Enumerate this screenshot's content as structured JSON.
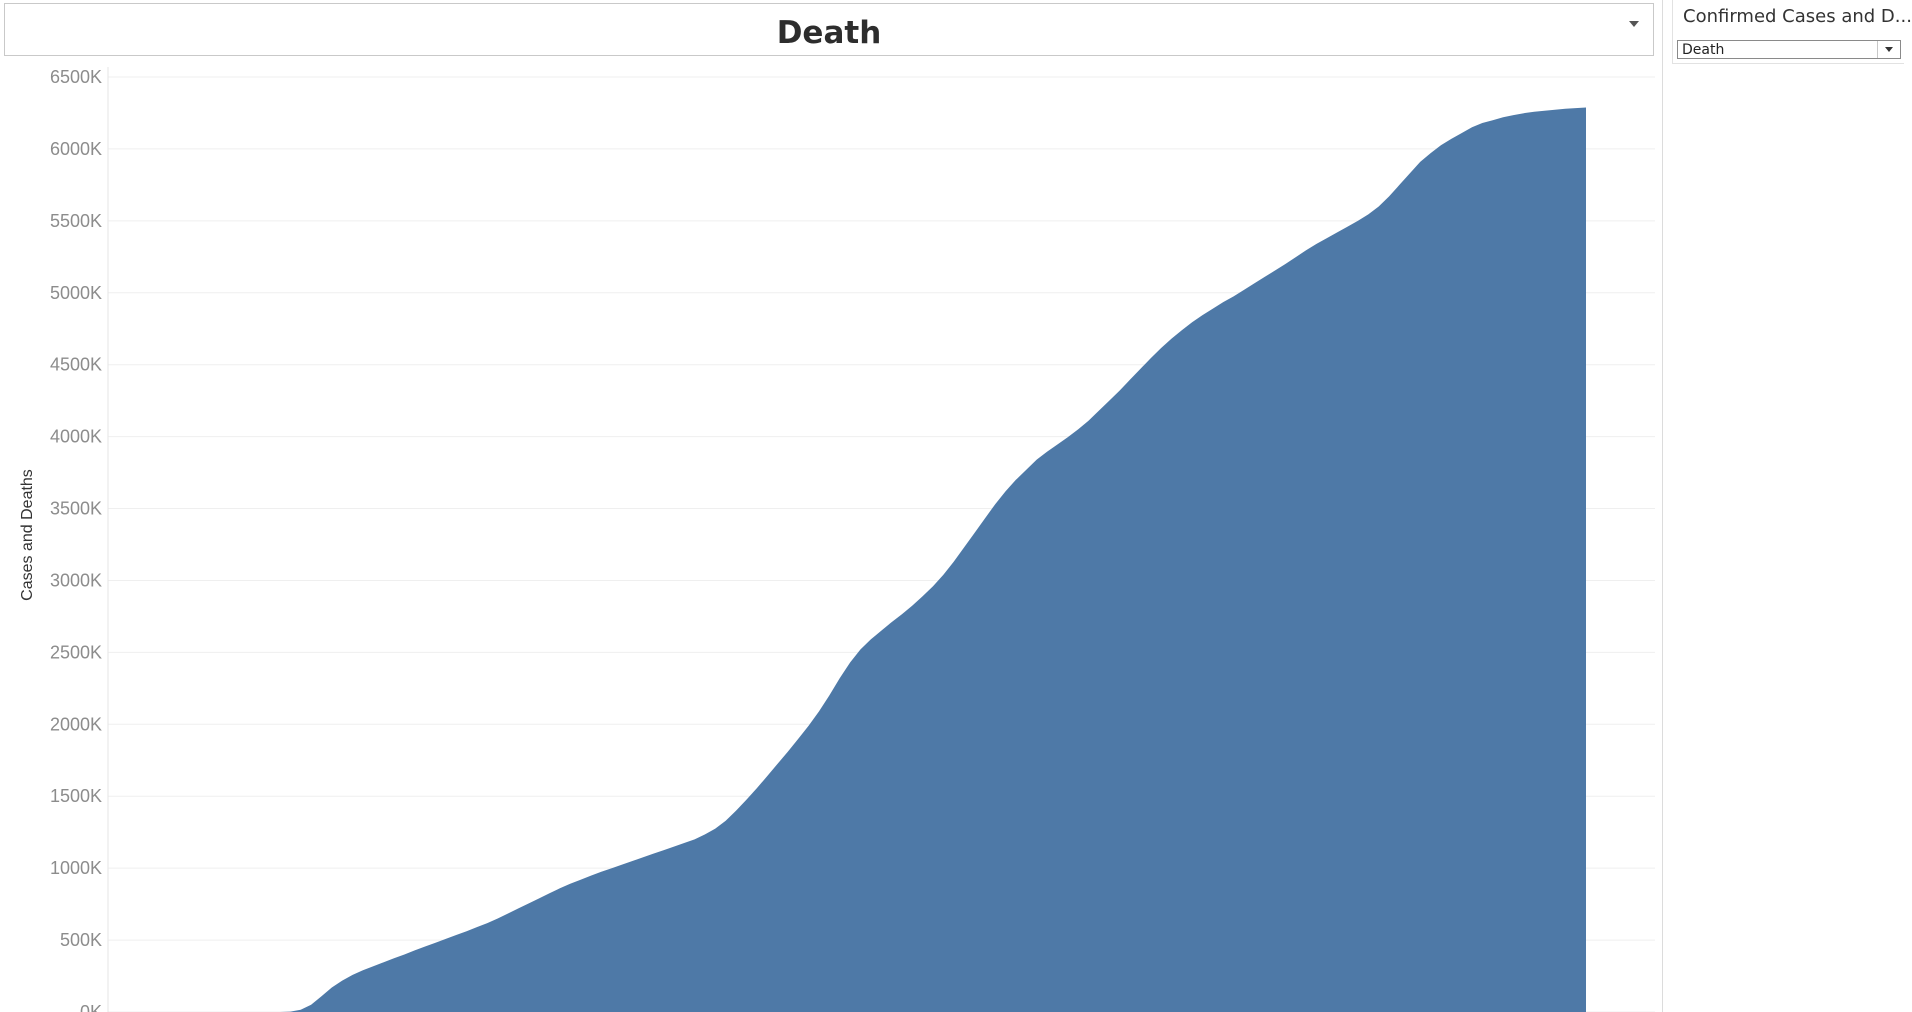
{
  "header": {
    "title": "Death"
  },
  "filter": {
    "title": "Confirmed Cases and D...",
    "selected": "Death"
  },
  "icons": {
    "title_dropdown": "chevron-down-icon",
    "filter_dropdown": "chevron-down-icon"
  },
  "colors": {
    "area": "#4e79a7",
    "grid": "#efefef"
  },
  "chart_data": {
    "type": "area",
    "title": "Death",
    "ylabel": "Cases and Deaths",
    "xlabel": "",
    "ylim": [
      0,
      6500000
    ],
    "yticks": [
      0,
      500000,
      1000000,
      1500000,
      2000000,
      2500000,
      3000000,
      3500000,
      4000000,
      4500000,
      5000000,
      5500000,
      6000000,
      6500000
    ],
    "ytick_labels": [
      "0K",
      "500K",
      "1000K",
      "1500K",
      "2000K",
      "2500K",
      "3000K",
      "3500K",
      "4000K",
      "4500K",
      "5000K",
      "5500K",
      "6000K",
      "6500K"
    ],
    "grid": true,
    "legend": "none",
    "series": [
      {
        "values": [
          0,
          3000,
          15000,
          50000,
          110000,
          170000,
          218000,
          258000,
          290000,
          318000,
          346000,
          373000,
          400000,
          428000,
          455000,
          482000,
          508000,
          535000,
          562000,
          590000,
          618000,
          650000,
          685000,
          720000,
          755000,
          790000,
          825000,
          860000,
          892000,
          920000,
          948000,
          975000,
          1000000,
          1025000,
          1050000,
          1075000,
          1100000,
          1125000,
          1150000,
          1175000,
          1200000,
          1235000,
          1275000,
          1330000,
          1400000,
          1475000,
          1555000,
          1640000,
          1725000,
          1810000,
          1900000,
          1990000,
          2090000,
          2200000,
          2320000,
          2430000,
          2520000,
          2590000,
          2650000,
          2710000,
          2765000,
          2825000,
          2890000,
          2960000,
          3040000,
          3130000,
          3230000,
          3330000,
          3430000,
          3530000,
          3620000,
          3700000,
          3770000,
          3840000,
          3895000,
          3945000,
          3995000,
          4050000,
          4110000,
          4180000,
          4250000,
          4320000,
          4395000,
          4470000,
          4545000,
          4615000,
          4680000,
          4740000,
          4795000,
          4845000,
          4890000,
          4935000,
          4975000,
          5020000,
          5065000,
          5110000,
          5155000,
          5200000,
          5248000,
          5295000,
          5340000,
          5380000,
          5420000,
          5460000,
          5500000,
          5545000,
          5600000,
          5670000,
          5750000,
          5830000,
          5910000,
          5970000,
          6025000,
          6070000,
          6110000,
          6150000,
          6180000,
          6200000,
          6220000,
          6235000,
          6248000,
          6258000,
          6266000,
          6273000,
          6279000,
          6284000,
          6288000
        ]
      }
    ]
  }
}
